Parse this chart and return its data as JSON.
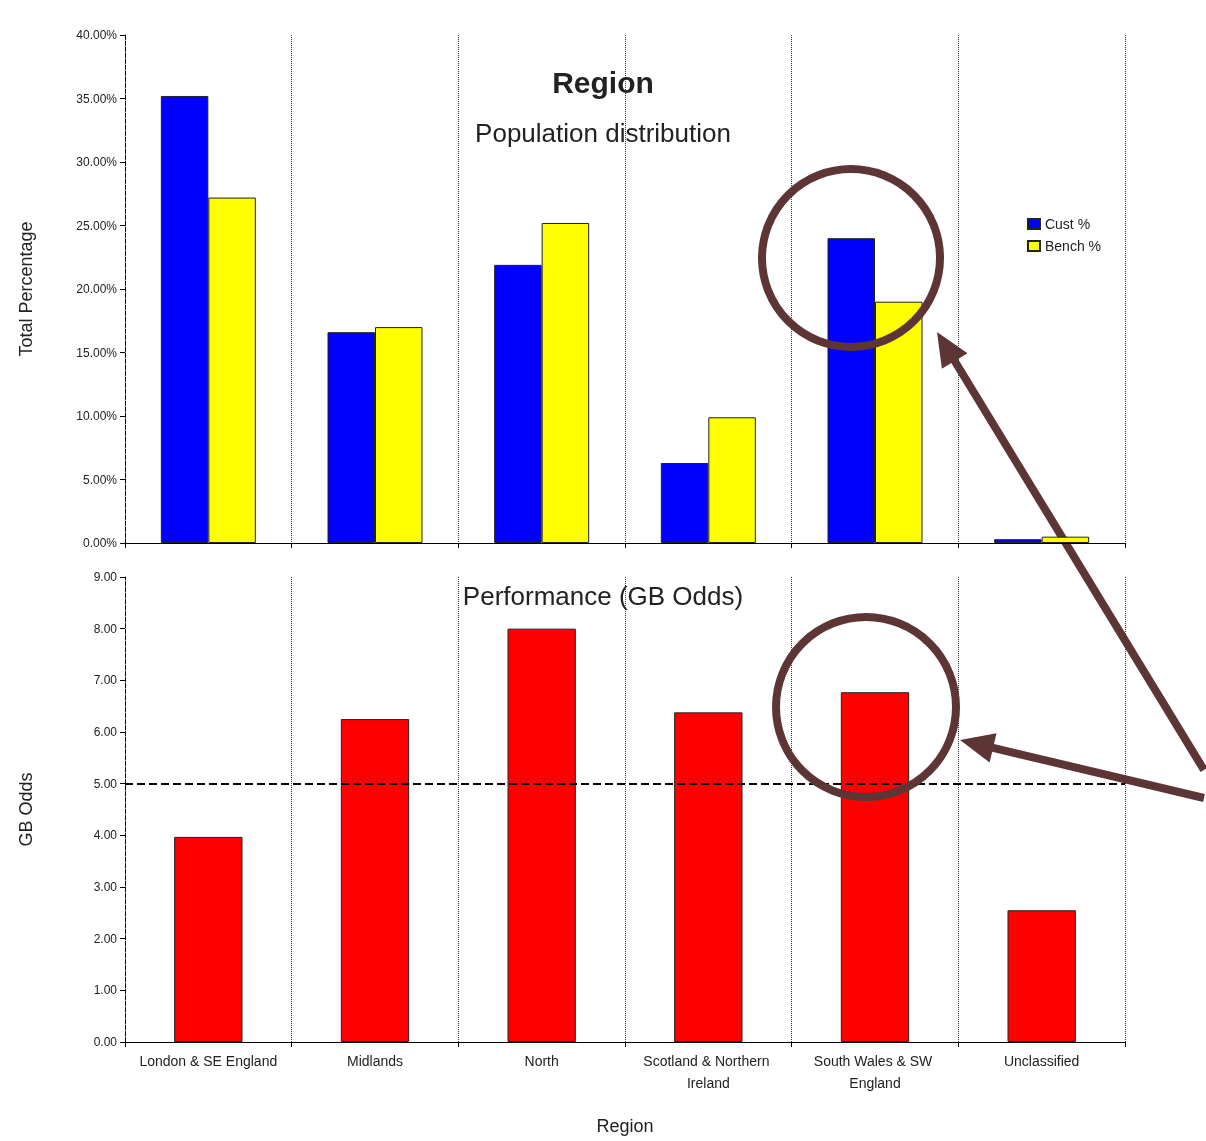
{
  "chart_data": [
    {
      "type": "bar",
      "title": "Region",
      "subtitle": "Population distribution",
      "ylabel": "Total Percentage",
      "categories": [
        "London & SE England",
        "Midlands",
        "North",
        "Scotland & Northern Ireland",
        "South Wales & SW England",
        "Unclassified"
      ],
      "series": [
        {
          "name": "Cust %",
          "color": "#0000ff",
          "values": [
            35.2,
            16.6,
            21.9,
            6.3,
            24.0,
            0.3
          ]
        },
        {
          "name": "Bench %",
          "color": "#ffff00",
          "values": [
            27.2,
            17.0,
            25.2,
            9.9,
            19.0,
            0.5
          ]
        }
      ],
      "ylim": [
        0,
        40
      ],
      "yticks": [
        {
          "value": 0,
          "label": "0.00%"
        },
        {
          "value": 5,
          "label": "5.00%"
        },
        {
          "value": 10,
          "label": "10.00%"
        },
        {
          "value": 15,
          "label": "15.00%"
        },
        {
          "value": 20,
          "label": "20.00%"
        },
        {
          "value": 25,
          "label": "25.00%"
        },
        {
          "value": 30,
          "label": "30.00%"
        },
        {
          "value": 35,
          "label": "35.00%"
        },
        {
          "value": 40,
          "label": "40.00%"
        }
      ],
      "tick_labels": "y",
      "grid": "x",
      "legend": "right"
    },
    {
      "type": "bar",
      "title": "Performance (GB Odds)",
      "xlabel": "Region",
      "ylabel": "GB Odds",
      "categories": [
        "London & SE England",
        "Midlands",
        "North",
        "Scotland & Northern Ireland",
        "South Wales & SW England",
        "Unclassified"
      ],
      "series": [
        {
          "color": "#ff0000",
          "values": [
            3.97,
            6.25,
            8.0,
            6.38,
            6.77,
            2.55
          ]
        }
      ],
      "ylim": [
        0,
        9
      ],
      "yticks": [
        {
          "value": 0,
          "label": "0.00"
        },
        {
          "value": 1,
          "label": "1.00"
        },
        {
          "value": 2,
          "label": "2.00"
        },
        {
          "value": 3,
          "label": "3.00"
        },
        {
          "value": 4,
          "label": "4.00"
        },
        {
          "value": 5,
          "label": "5.00"
        },
        {
          "value": 6,
          "label": "6.00"
        },
        {
          "value": 7,
          "label": "7.00"
        },
        {
          "value": 8,
          "label": "8.00"
        },
        {
          "value": 9,
          "label": "9.00"
        }
      ],
      "ref_lines": [
        {
          "axis": "y",
          "value": 5,
          "color": "#000000",
          "line_style": "dashed"
        }
      ],
      "grid": "x",
      "legend": false
    }
  ]
}
